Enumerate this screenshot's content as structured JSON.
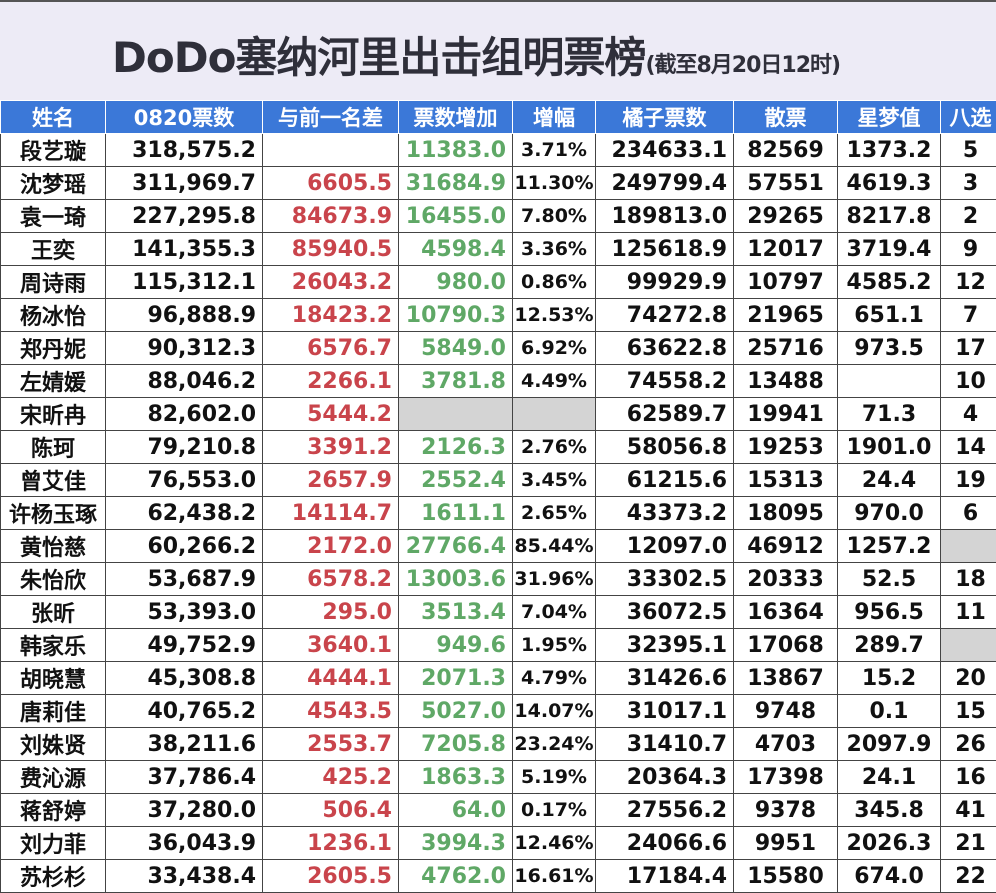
{
  "title": {
    "main": "DoDo塞纳河里出击组明票榜",
    "sub": "(截至8月20日12时)"
  },
  "colors": {
    "header_bg": "#3b78d8",
    "diff": "#c9444b",
    "increase": "#5fa866",
    "missing": "#d4d4d4"
  },
  "columns": [
    "姓名",
    "0820票数",
    "与前一名差",
    "票数增加",
    "增幅",
    "橘子票数",
    "散票",
    "星梦值",
    "八选"
  ],
  "rows": [
    [
      "段艺璇",
      "318,575.2",
      "",
      "11383.0",
      "3.71%",
      "234633.1",
      "82569",
      "1373.2",
      "5"
    ],
    [
      "沈梦瑶",
      "311,969.7",
      "6605.5",
      "31684.9",
      "11.30%",
      "249799.4",
      "57551",
      "4619.3",
      "3"
    ],
    [
      "袁一琦",
      "227,295.8",
      "84673.9",
      "16455.0",
      "7.80%",
      "189813.0",
      "29265",
      "8217.8",
      "2"
    ],
    [
      "王奕",
      "141,355.3",
      "85940.5",
      "4598.4",
      "3.36%",
      "125618.9",
      "12017",
      "3719.4",
      "9"
    ],
    [
      "周诗雨",
      "115,312.1",
      "26043.2",
      "980.0",
      "0.86%",
      "99929.9",
      "10797",
      "4585.2",
      "12"
    ],
    [
      "杨冰怡",
      "96,888.9",
      "18423.2",
      "10790.3",
      "12.53%",
      "74272.8",
      "21965",
      "651.1",
      "7"
    ],
    [
      "郑丹妮",
      "90,312.3",
      "6576.7",
      "5849.0",
      "6.92%",
      "63622.8",
      "25716",
      "973.5",
      "17"
    ],
    [
      "左婧媛",
      "88,046.2",
      "2266.1",
      "3781.8",
      "4.49%",
      "74558.2",
      "13488",
      "",
      "10"
    ],
    [
      "宋昕冉",
      "82,602.0",
      "5444.2",
      null,
      null,
      "62589.7",
      "19941",
      "71.3",
      "4"
    ],
    [
      "陈珂",
      "79,210.8",
      "3391.2",
      "2126.3",
      "2.76%",
      "58056.8",
      "19253",
      "1901.0",
      "14"
    ],
    [
      "曾艾佳",
      "76,553.0",
      "2657.9",
      "2552.4",
      "3.45%",
      "61215.6",
      "15313",
      "24.4",
      "19"
    ],
    [
      "许杨玉琢",
      "62,438.2",
      "14114.7",
      "1611.1",
      "2.65%",
      "43373.2",
      "18095",
      "970.0",
      "6"
    ],
    [
      "黄怡慈",
      "60,266.2",
      "2172.0",
      "27766.4",
      "85.44%",
      "12097.0",
      "46912",
      "1257.2",
      null
    ],
    [
      "朱怡欣",
      "53,687.9",
      "6578.2",
      "13003.6",
      "31.96%",
      "33302.5",
      "20333",
      "52.5",
      "18"
    ],
    [
      "张昕",
      "53,393.0",
      "295.0",
      "3513.4",
      "7.04%",
      "36072.5",
      "16364",
      "956.5",
      "11"
    ],
    [
      "韩家乐",
      "49,752.9",
      "3640.1",
      "949.6",
      "1.95%",
      "32395.1",
      "17068",
      "289.7",
      null
    ],
    [
      "胡晓慧",
      "45,308.8",
      "4444.1",
      "2071.3",
      "4.79%",
      "31426.6",
      "13867",
      "15.2",
      "20"
    ],
    [
      "唐莉佳",
      "40,765.2",
      "4543.5",
      "5027.0",
      "14.07%",
      "31017.1",
      "9748",
      "0.1",
      "15"
    ],
    [
      "刘姝贤",
      "38,211.6",
      "2553.7",
      "7205.8",
      "23.24%",
      "31410.7",
      "4703",
      "2097.9",
      "26"
    ],
    [
      "费沁源",
      "37,786.4",
      "425.2",
      "1863.3",
      "5.19%",
      "20364.3",
      "17398",
      "24.1",
      "16"
    ],
    [
      "蒋舒婷",
      "37,280.0",
      "506.4",
      "64.0",
      "0.17%",
      "27556.2",
      "9378",
      "345.8",
      "41"
    ],
    [
      "刘力菲",
      "36,043.9",
      "1236.1",
      "3994.3",
      "12.46%",
      "24066.6",
      "9951",
      "2026.3",
      "21"
    ],
    [
      "苏杉杉",
      "33,438.4",
      "2605.5",
      "4762.0",
      "16.61%",
      "17184.4",
      "15580",
      "674.0",
      "22"
    ]
  ]
}
